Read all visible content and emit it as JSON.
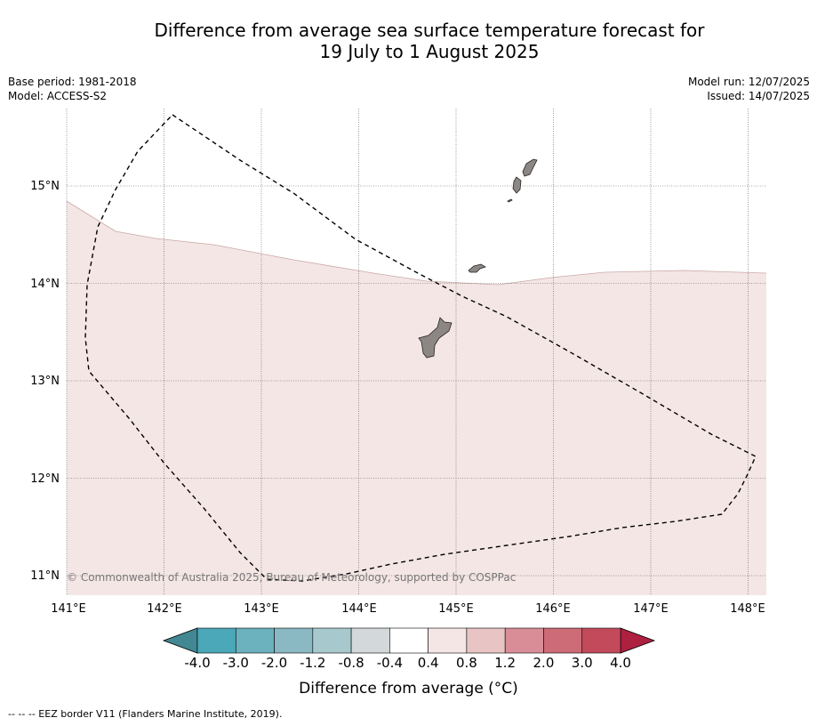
{
  "title_line1": "Difference from average sea surface temperature forecast for",
  "title_line2": "19 July to 1 August 2025",
  "meta": {
    "base_period": "Base period: 1981-2018",
    "model": "Model: ACCESS-S2",
    "model_run": "Model run: 12/07/2025",
    "issued": "Issued: 14/07/2025"
  },
  "map": {
    "lon_labels": [
      "141°E",
      "142°E",
      "143°E",
      "144°E",
      "145°E",
      "146°E",
      "147°E",
      "148°E"
    ],
    "lat_labels": [
      "15°N",
      "14°N",
      "13°N",
      "12°N",
      "11°N"
    ],
    "copyright": "© Commonwealth of Australia 2025, Bureau of Meteorology, supported by COSPPac",
    "colors": {
      "anomaly_fill": "#f4e6e5",
      "land": "#8c8785",
      "grid": "#555555"
    }
  },
  "colorbar": {
    "ticks": [
      "-4.0",
      "-3.0",
      "-2.0",
      "-1.2",
      "-0.8",
      "-0.4",
      "0.4",
      "0.8",
      "1.2",
      "2.0",
      "3.0",
      "4.0"
    ],
    "colors": [
      "#4aa8b8",
      "#6cb1be",
      "#8ab8c3",
      "#a7c8cc",
      "#d3d8da",
      "#ffffff",
      "#f4e6e5",
      "#e8c5c4",
      "#d98e97",
      "#cd6b77",
      "#c24a5b"
    ],
    "under_color": "#418892",
    "over_color": "#ae2040",
    "label": "Difference from average (°C)"
  },
  "footer": "-- -- -- EEZ border V11 (Flanders Marine Institute, 2019)."
}
